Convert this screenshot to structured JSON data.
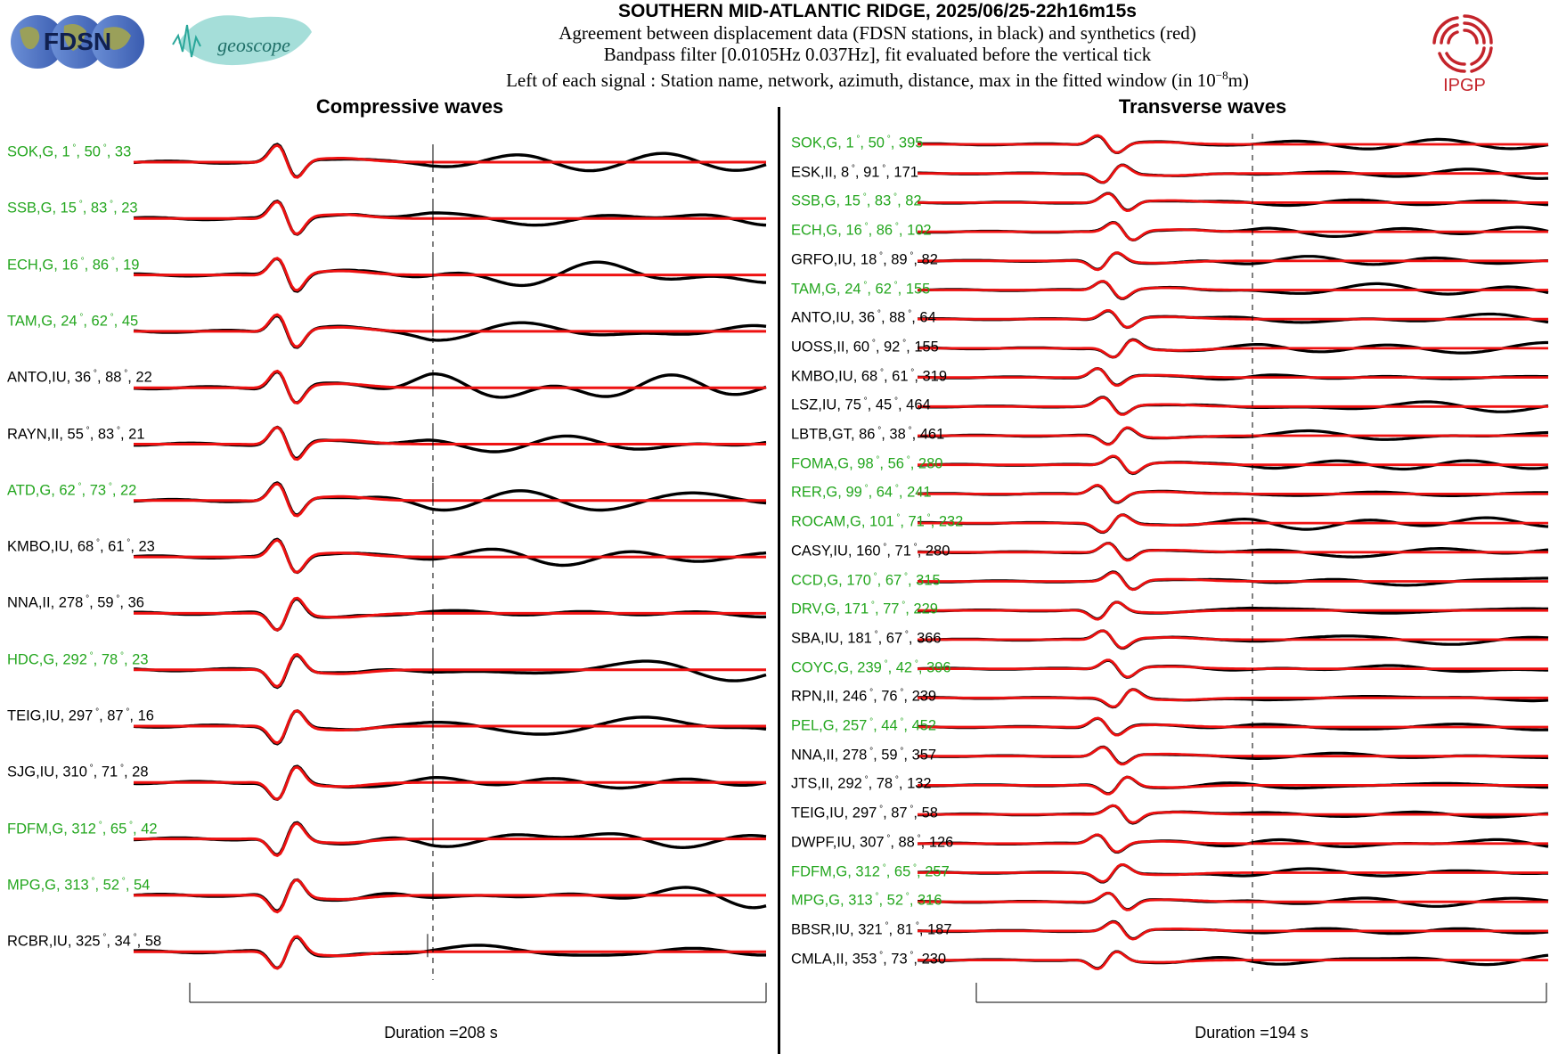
{
  "header": {
    "title": "SOUTHERN MID-ATLANTIC RIDGE, 2025/06/25-22h16m15s",
    "line1": "Agreement between displacement data (FDSN stations, in black) and synthetics (red)",
    "line2": "Bandpass filter [0.0105Hz 0.037Hz], fit evaluated before the vertical tick",
    "line3_pre": "Left of each signal : Station name, network, azimuth, distance, max in the fitted window (in 10",
    "line3_exp": "−8",
    "line3_post": "m)"
  },
  "logos": {
    "fdsn": "FDSN",
    "geoscope": "geoscope",
    "ipgp": "IPGP"
  },
  "colors": {
    "data": "#000000",
    "synthetic": "#ee1111",
    "green_label": "#23a61e"
  },
  "left_panel": {
    "title": "Compressive waves",
    "duration": "Duration =208 s",
    "stations": [
      {
        "name": "SOK,G",
        "az": "1",
        "dist": "50",
        "max": "33",
        "green": true
      },
      {
        "name": "SSB,G",
        "az": "15",
        "dist": "83",
        "max": "23",
        "green": true
      },
      {
        "name": "ECH,G",
        "az": "16",
        "dist": "86",
        "max": "19",
        "green": true
      },
      {
        "name": "TAM,G",
        "az": "24",
        "dist": "62",
        "max": "45",
        "green": true
      },
      {
        "name": "ANTO,IU",
        "az": "36",
        "dist": "88",
        "max": "22",
        "green": false
      },
      {
        "name": "RAYN,II",
        "az": "55",
        "dist": "83",
        "max": "21",
        "green": false
      },
      {
        "name": "ATD,G",
        "az": "62",
        "dist": "73",
        "max": "22",
        "green": true
      },
      {
        "name": "KMBO,IU",
        "az": "68",
        "dist": "61",
        "max": "23",
        "green": false
      },
      {
        "name": "NNA,II",
        "az": "278",
        "dist": "59",
        "max": "36",
        "green": false
      },
      {
        "name": "HDC,G",
        "az": "292",
        "dist": "78",
        "max": "23",
        "green": true
      },
      {
        "name": "TEIG,IU",
        "az": "297",
        "dist": "87",
        "max": "16",
        "green": false
      },
      {
        "name": "SJG,IU",
        "az": "310",
        "dist": "71",
        "max": "28",
        "green": false
      },
      {
        "name": "FDFM,G",
        "az": "312",
        "dist": "65",
        "max": "42",
        "green": true
      },
      {
        "name": "MPG,G",
        "az": "313",
        "dist": "52",
        "max": "54",
        "green": true
      },
      {
        "name": "RCBR,IU",
        "az": "325",
        "dist": "34",
        "max": "58",
        "green": false
      }
    ]
  },
  "right_panel": {
    "title": "Transverse waves",
    "duration": "Duration =194 s",
    "stations": [
      {
        "name": "SOK,G",
        "az": "1",
        "dist": "50",
        "max": "395",
        "green": true
      },
      {
        "name": "ESK,II",
        "az": "8",
        "dist": "91",
        "max": "171",
        "green": false
      },
      {
        "name": "SSB,G",
        "az": "15",
        "dist": "83",
        "max": "82",
        "green": true
      },
      {
        "name": "ECH,G",
        "az": "16",
        "dist": "86",
        "max": "102",
        "green": true
      },
      {
        "name": "GRFO,IU",
        "az": "18",
        "dist": "89",
        "max": "82",
        "green": false
      },
      {
        "name": "TAM,G",
        "az": "24",
        "dist": "62",
        "max": "155",
        "green": true
      },
      {
        "name": "ANTO,IU",
        "az": "36",
        "dist": "88",
        "max": "64",
        "green": false
      },
      {
        "name": "UOSS,II",
        "az": "60",
        "dist": "92",
        "max": "155",
        "green": false
      },
      {
        "name": "KMBO,IU",
        "az": "68",
        "dist": "61",
        "max": "319",
        "green": false
      },
      {
        "name": "LSZ,IU",
        "az": "75",
        "dist": "45",
        "max": "464",
        "green": false
      },
      {
        "name": "LBTB,GT",
        "az": "86",
        "dist": "38",
        "max": "461",
        "green": false
      },
      {
        "name": "FOMA,G",
        "az": "98",
        "dist": "56",
        "max": "280",
        "green": true
      },
      {
        "name": "RER,G",
        "az": "99",
        "dist": "64",
        "max": "241",
        "green": true
      },
      {
        "name": "ROCAM,G",
        "az": "101",
        "dist": "71",
        "max": "232",
        "green": true
      },
      {
        "name": "CASY,IU",
        "az": "160",
        "dist": "71",
        "max": "280",
        "green": false
      },
      {
        "name": "CCD,G",
        "az": "170",
        "dist": "67",
        "max": "315",
        "green": true
      },
      {
        "name": "DRV,G",
        "az": "171",
        "dist": "77",
        "max": "229",
        "green": true
      },
      {
        "name": "SBA,IU",
        "az": "181",
        "dist": "67",
        "max": "366",
        "green": false
      },
      {
        "name": "COYC,G",
        "az": "239",
        "dist": "42",
        "max": "396",
        "green": true
      },
      {
        "name": "RPN,II",
        "az": "246",
        "dist": "76",
        "max": "239",
        "green": false
      },
      {
        "name": "PEL,G",
        "az": "257",
        "dist": "44",
        "max": "452",
        "green": true
      },
      {
        "name": "NNA,II",
        "az": "278",
        "dist": "59",
        "max": "357",
        "green": false
      },
      {
        "name": "JTS,II",
        "az": "292",
        "dist": "78",
        "max": "132",
        "green": false
      },
      {
        "name": "TEIG,IU",
        "az": "297",
        "dist": "87",
        "max": "58",
        "green": false
      },
      {
        "name": "DWPF,IU",
        "az": "307",
        "dist": "88",
        "max": "126",
        "green": false
      },
      {
        "name": "FDFM,G",
        "az": "312",
        "dist": "65",
        "max": "257",
        "green": true
      },
      {
        "name": "MPG,G",
        "az": "313",
        "dist": "52",
        "max": "316",
        "green": true
      },
      {
        "name": "BBSR,IU",
        "az": "321",
        "dist": "81",
        "max": "187",
        "green": false
      },
      {
        "name": "CMLA,II",
        "az": "353",
        "dist": "73",
        "max": "230",
        "green": false
      }
    ]
  }
}
